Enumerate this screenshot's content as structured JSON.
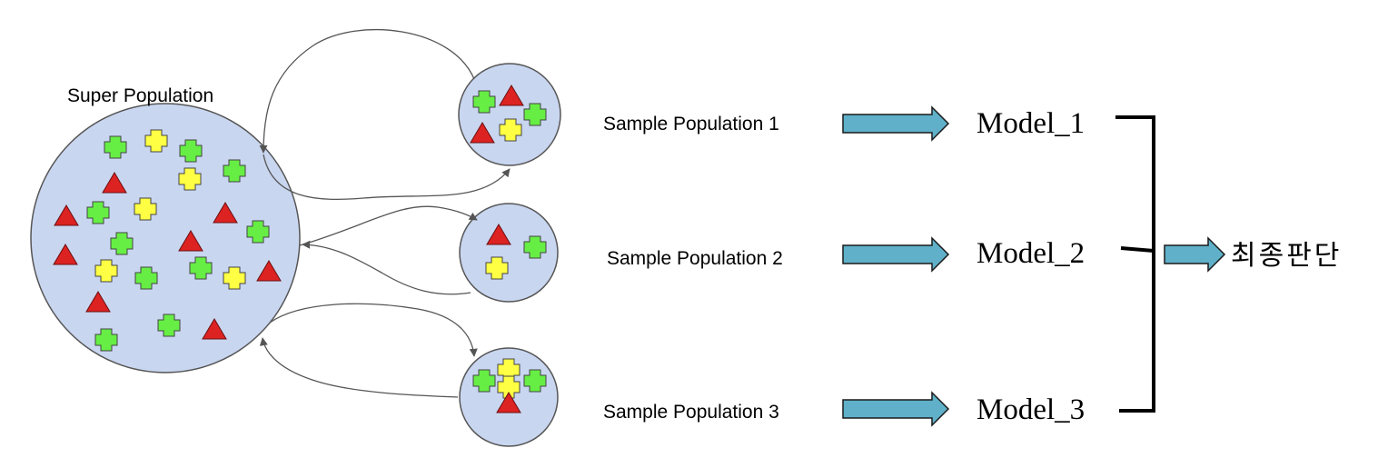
{
  "super_population": {
    "label": "Super Population",
    "items": [
      [
        "green",
        127,
        162
      ],
      [
        "yellow",
        172,
        155
      ],
      [
        "green",
        210,
        166
      ],
      [
        "yellow",
        209,
        197
      ],
      [
        "green",
        258,
        188
      ],
      [
        "triangle",
        126,
        201
      ],
      [
        "triangle",
        73,
        237
      ],
      [
        "green",
        108,
        234
      ],
      [
        "yellow",
        160,
        230
      ],
      [
        "triangle",
        248,
        234
      ],
      [
        "green",
        284,
        255
      ],
      [
        "green",
        134,
        268
      ],
      [
        "triangle",
        210,
        265
      ],
      [
        "triangle",
        72,
        280
      ],
      [
        "yellow",
        117,
        298
      ],
      [
        "green",
        161,
        306
      ],
      [
        "green",
        221,
        295
      ],
      [
        "yellow",
        258,
        306
      ],
      [
        "triangle",
        296,
        298
      ],
      [
        "triangle",
        108,
        332
      ],
      [
        "green",
        186,
        358
      ],
      [
        "triangle",
        236,
        362
      ],
      [
        "green",
        117,
        374
      ]
    ]
  },
  "samples": [
    {
      "label": "Sample Population 1",
      "model": "Model_1",
      "items": [
        [
          "green",
          533,
          112
        ],
        [
          "triangle",
          563,
          105
        ],
        [
          "green",
          589,
          126
        ],
        [
          "triangle",
          531,
          146
        ],
        [
          "yellow",
          562,
          143
        ]
      ]
    },
    {
      "label": "Sample Population 2",
      "model": "Model_2",
      "items": [
        [
          "triangle",
          549,
          258
        ],
        [
          "green",
          589,
          272
        ],
        [
          "yellow",
          547,
          295
        ]
      ]
    },
    {
      "label": "Sample Population 3",
      "model": "Model_3",
      "items": [
        [
          "green",
          533,
          419
        ],
        [
          "yellow",
          560,
          407
        ],
        [
          "yellow",
          560,
          426
        ],
        [
          "green",
          589,
          419
        ],
        [
          "triangle",
          560,
          443
        ]
      ]
    }
  ],
  "final": {
    "label": "최종판단"
  },
  "colors": {
    "circle_fill": "#c9d6f0",
    "circle_stroke": "#555555",
    "green": "#66ee44",
    "yellow": "#ffff44",
    "red": "#dd2222",
    "arrow_fill": "#5fb0c8",
    "curve": "#555555"
  }
}
